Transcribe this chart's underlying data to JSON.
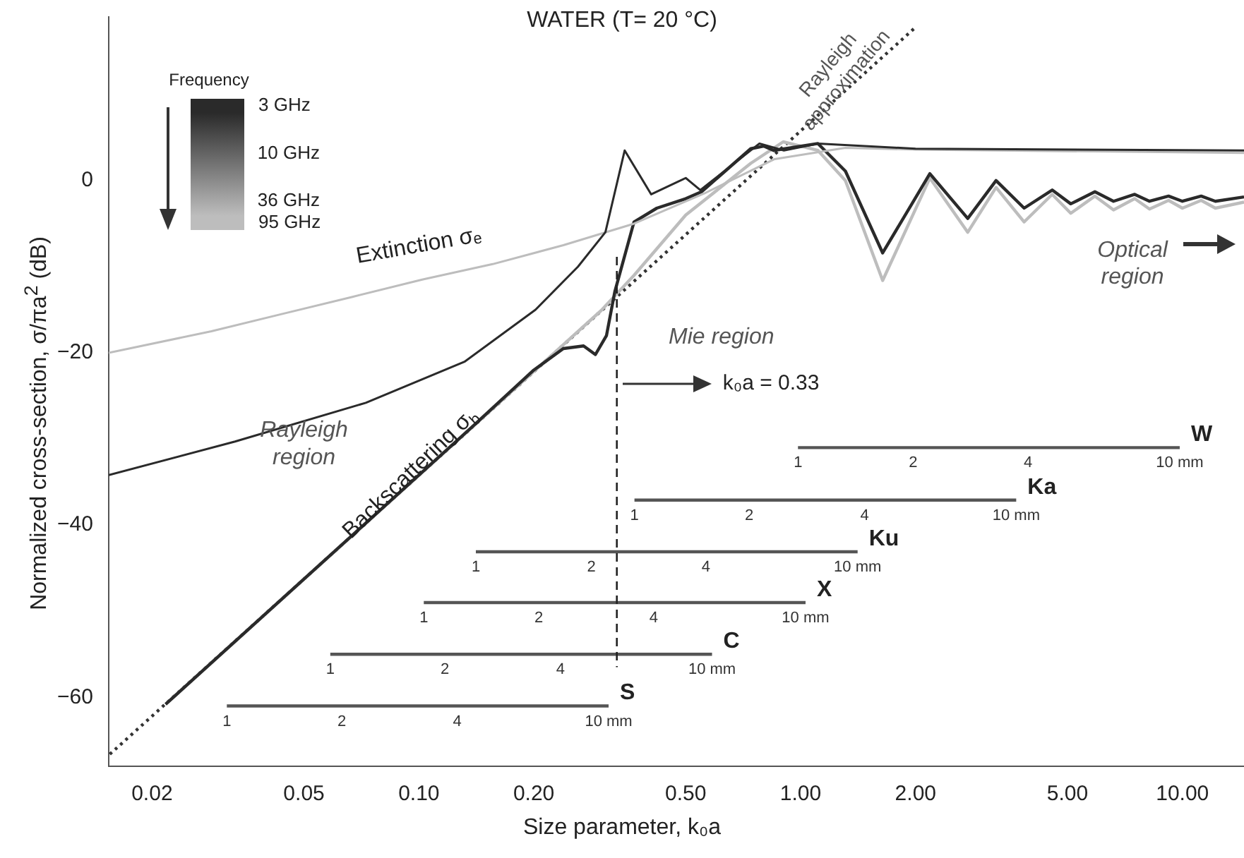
{
  "chart_data": {
    "type": "line",
    "title": "WATER (T= 20 °C)",
    "xlabel": "Size parameter, k₀a",
    "ylabel": "Normalized cross-section, σ/πa$^{2}$ (dB)",
    "log": "x",
    "grid": false,
    "marker": "none",
    "xlim": [
      0.0154,
      14.5
    ],
    "xticks": [
      {
        "value": 0.02,
        "label": "0.02"
      },
      {
        "value": 0.05,
        "label": "0.05"
      },
      {
        "value": 0.1,
        "label": "0.10"
      },
      {
        "value": 0.2,
        "label": "0.20"
      },
      {
        "value": 0.5,
        "label": "0.50"
      },
      {
        "value": 1,
        "label": "1.00"
      },
      {
        "value": 2,
        "label": "2.00"
      },
      {
        "value": 5,
        "label": "5.00"
      },
      {
        "value": 10,
        "label": "10.00"
      }
    ],
    "ylim": [
      -68,
      19
    ],
    "yticks": [
      0,
      {
        "value": -20,
        "label": "−20"
      },
      {
        "value": -40,
        "label": "−40"
      },
      {
        "value": -60,
        "label": "−60"
      }
    ],
    "legend": "top left",
    "legend_title": "Frequency",
    "series": [
      {
        "type": "line",
        "name": "3 GHz",
        "color": "#2a2a2a",
        "x": [
          0.0154,
          0.033,
          0.0726,
          0.132,
          0.202,
          0.261,
          0.308,
          0.346,
          0.406,
          0.5,
          0.546,
          0.78,
          0.904,
          1.11,
          2.0,
          14.5
        ],
        "values": [
          -34.2,
          -30.3,
          -25.8,
          -21,
          -15,
          -10,
          -6,
          3.5,
          -1.6,
          0.3,
          -1.1,
          4.3,
          3.5,
          4.3,
          3.7,
          3.5
        ]
      },
      {
        "type": "line",
        "name": "95 GHz",
        "color": "#bdbdbd",
        "x": [
          0.0154,
          0.0286,
          0.0437,
          0.067,
          0.102,
          0.156,
          0.239,
          0.366,
          0.559,
          0.855,
          1.31,
          2.0,
          14.5
        ],
        "values": [
          -20,
          -17.5,
          -15.5,
          -13.5,
          -11.5,
          -9.7,
          -7.5,
          -5,
          -1.5,
          2.5,
          3.8,
          3.6,
          3.2
        ]
      },
      {
        "type": "line",
        "color": "#2a2a2a",
        "x": [
          0.0217,
          0.137,
          0.2,
          0.239,
          0.27,
          0.29,
          0.31,
          0.326,
          0.366,
          0.42,
          0.5,
          0.55,
          0.74,
          0.8,
          0.85,
          1.11,
          1.31,
          1.64,
          2.18,
          2.74,
          3.25,
          3.85,
          4.56,
          5.1,
          5.9,
          6.6,
          7.5,
          8.2,
          9.2,
          10,
          11.2,
          12.2,
          14.5
        ],
        "values": [
          -60.8,
          -28.7,
          -22,
          -19.5,
          -19.2,
          -20.2,
          -18,
          -12.9,
          -4.8,
          -3.2,
          -2.1,
          -1.3,
          3.7,
          4,
          3.5,
          4.3,
          1.1,
          -8.4,
          0.8,
          -4.4,
          0,
          -3.2,
          -1.1,
          -2.7,
          -1.3,
          -2.4,
          -1.6,
          -2.4,
          -1.8,
          -2.4,
          -1.8,
          -2.4,
          -1.9
        ]
      },
      {
        "type": "line",
        "color": "#bdbdbd",
        "x": [
          0.0217,
          0.3,
          0.366,
          0.5,
          0.74,
          0.9,
          1.11,
          1.31,
          1.64,
          2.18,
          2.74,
          3.25,
          3.85,
          4.56,
          5.1,
          5.9,
          6.6,
          7.5,
          8.2,
          9.2,
          10,
          11.2,
          12.2,
          14.5
        ],
        "values": [
          -60.8,
          -15.1,
          -11,
          -4,
          2,
          4.5,
          3.5,
          0,
          -11.6,
          0.3,
          -6,
          -0.8,
          -4.8,
          -1.6,
          -3.8,
          -1.8,
          -3.4,
          -2.1,
          -3.3,
          -2.3,
          -3.2,
          -2.3,
          -3.2,
          -2.5
        ]
      },
      {
        "type": "line",
        "color": "#333333",
        "line_style": "dotted",
        "x": [
          0.0155,
          2.0
        ],
        "values": [
          -66.6,
          17.8
        ]
      },
      {
        "type": "line",
        "color": "#555555",
        "x": [
          0.0314,
          0.0628,
          0.126,
          0.314
        ],
        "values": [
          -61,
          -61,
          -61,
          -61
        ]
      },
      {
        "type": "line",
        "color": "#555555",
        "x": [
          0.0586,
          0.117,
          0.235,
          0.586
        ],
        "values": [
          -55,
          -55,
          -55,
          -55
        ]
      },
      {
        "type": "line",
        "color": "#555555",
        "x": [
          0.103,
          0.206,
          0.412,
          1.03
        ],
        "values": [
          -49,
          -49,
          -49,
          -49
        ]
      },
      {
        "type": "line",
        "color": "#555555",
        "x": [
          0.141,
          0.283,
          0.565,
          1.41
        ],
        "values": [
          -43.1,
          -43.1,
          -43.1,
          -43.1
        ]
      },
      {
        "type": "line",
        "color": "#555555",
        "x": [
          0.367,
          0.733,
          1.47,
          3.67
        ],
        "values": [
          -37.1,
          -37.1,
          -37.1,
          -37.1
        ]
      },
      {
        "type": "line",
        "color": "#555555",
        "x": [
          0.984,
          1.97,
          3.94,
          9.84
        ],
        "values": [
          -31,
          -31,
          -31,
          -31
        ]
      }
    ],
    "ref_lines": [
      {
        "axis": "x",
        "value": 0.33,
        "label": "k₀a = 0.33",
        "line_style": "dashed",
        "color": "#222222"
      }
    ],
    "annotations": [
      "Extinction σₑ",
      "Backscattering σ$_{b}$",
      "Rayleigh region",
      "Mie region",
      "Optical region",
      "Rayleigh approximation",
      "10 GHz",
      "36 GHz",
      {
        "text": "1",
        "x": 0.0314,
        "y": -61
      },
      {
        "text": "2",
        "x": 0.0628,
        "y": -61
      },
      {
        "text": "4",
        "x": 0.126,
        "y": -61
      },
      {
        "text": "10 mm",
        "x": 0.314,
        "y": -61
      },
      {
        "text": "1",
        "x": 0.0586,
        "y": -55
      },
      {
        "text": "2",
        "x": 0.117,
        "y": -55
      },
      {
        "text": "4",
        "x": 0.235,
        "y": -55
      },
      {
        "text": "10 mm",
        "x": 0.586,
        "y": -55
      },
      {
        "text": "1",
        "x": 0.103,
        "y": -49
      },
      {
        "text": "2",
        "x": 0.206,
        "y": -49
      },
      {
        "text": "4",
        "x": 0.412,
        "y": -49
      },
      {
        "text": "10 mm",
        "x": 1.03,
        "y": -49
      },
      {
        "text": "1",
        "x": 0.141,
        "y": -43.1
      },
      {
        "text": "2",
        "x": 0.283,
        "y": -43.1
      },
      {
        "text": "4",
        "x": 0.565,
        "y": -43.1
      },
      {
        "text": "10 mm",
        "x": 1.41,
        "y": -43.1
      },
      {
        "text": "1",
        "x": 0.367,
        "y": -37.1
      },
      {
        "text": "2",
        "x": 0.733,
        "y": -37.1
      },
      {
        "text": "4",
        "x": 1.47,
        "y": -37.1
      },
      {
        "text": "10 mm",
        "x": 3.67,
        "y": -37.1
      },
      {
        "text": "1",
        "x": 0.984,
        "y": -31
      },
      {
        "text": "2",
        "x": 1.97,
        "y": -31
      },
      {
        "text": "4",
        "x": 3.94,
        "y": -31
      },
      {
        "text": "10 mm",
        "x": 9.84,
        "y": -31
      },
      {
        "text": "S",
        "x": 0.314,
        "y": -61
      },
      {
        "text": "C",
        "x": 0.586,
        "y": -55
      },
      {
        "text": "X",
        "x": 1.03,
        "y": -49
      },
      {
        "text": "Ku",
        "x": 1.41,
        "y": -43.1
      },
      {
        "text": "Ka",
        "x": 3.67,
        "y": -37.1
      },
      {
        "text": "W",
        "x": 9.84,
        "y": -31
      }
    ]
  }
}
